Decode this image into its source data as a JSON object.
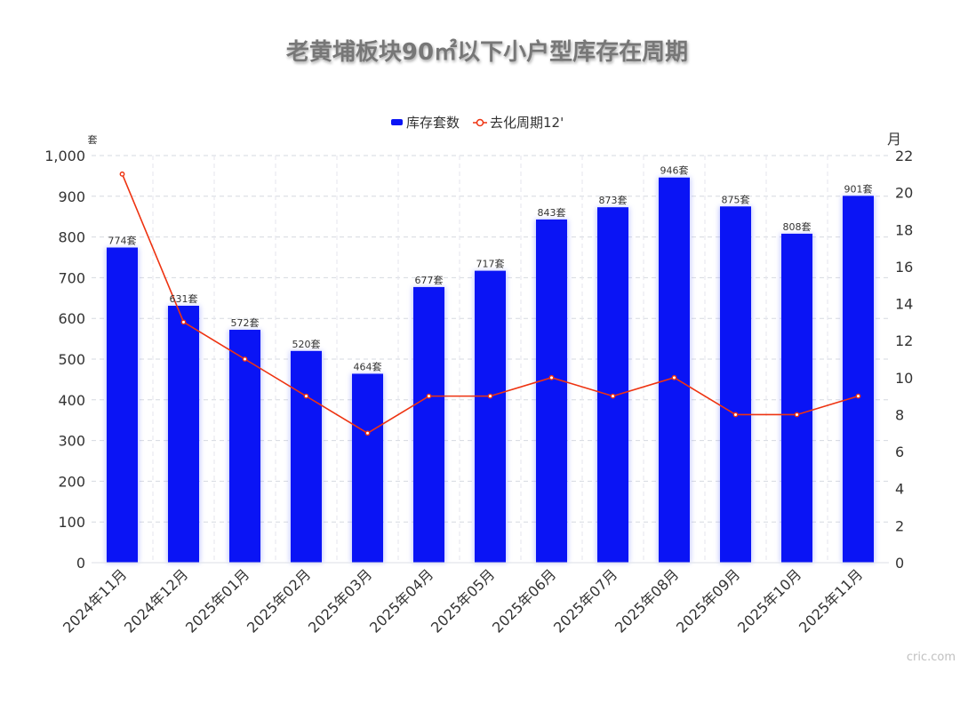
{
  "chart_data": {
    "type": "bar",
    "title": "老黄埔板块90㎡以下小户型库存在周期",
    "categories": [
      "2024年11月",
      "2024年12月",
      "2025年01月",
      "2025年02月",
      "2025年03月",
      "2025年04月",
      "2025年05月",
      "2025年06月",
      "2025年07月",
      "2025年08月",
      "2025年09月",
      "2025年10月",
      "2025年11月"
    ],
    "series": [
      {
        "name": "库存套数",
        "type": "bar",
        "axis": "left",
        "color": "#0a14f5",
        "values": [
          774,
          631,
          572,
          520,
          464,
          677,
          717,
          843,
          873,
          946,
          875,
          808,
          901
        ],
        "labels": [
          "774套",
          "631套",
          "572套",
          "520套",
          "464套",
          "677套",
          "717套",
          "843套",
          "873套",
          "946套",
          "875套",
          "808套",
          "901套"
        ]
      },
      {
        "name": "去化周期12'",
        "type": "line",
        "axis": "right",
        "color": "#ee3311",
        "values": [
          21,
          13,
          11,
          9,
          7,
          9,
          9,
          10,
          9,
          10,
          8,
          8,
          9
        ]
      }
    ],
    "y_left": {
      "unit": "套",
      "ylim": [
        0,
        1000
      ],
      "ticks": [
        "0",
        "100",
        "200",
        "300",
        "400",
        "500",
        "600",
        "700",
        "800",
        "900",
        "1,000"
      ]
    },
    "y_right": {
      "unit": "月",
      "ylim": [
        0,
        22
      ],
      "ticks": [
        "0",
        "2",
        "4",
        "6",
        "8",
        "10",
        "12",
        "14",
        "16",
        "18",
        "20",
        "22"
      ]
    },
    "grid": true,
    "legend_position": "top-center"
  },
  "watermark": "cric.com"
}
